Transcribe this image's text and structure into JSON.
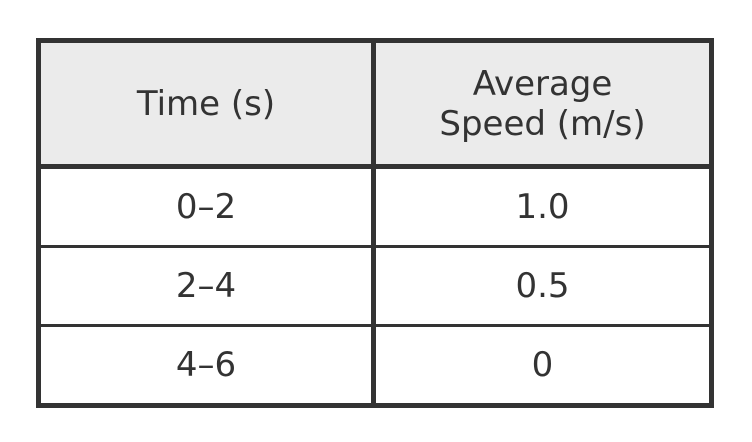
{
  "table": {
    "headers": [
      "Time (s)",
      [
        "Average",
        "Speed (m/s)"
      ]
    ],
    "rows": [
      [
        "0–2",
        "1.0"
      ],
      [
        "2–4",
        "0.5"
      ],
      [
        "4–6",
        "0"
      ]
    ]
  }
}
